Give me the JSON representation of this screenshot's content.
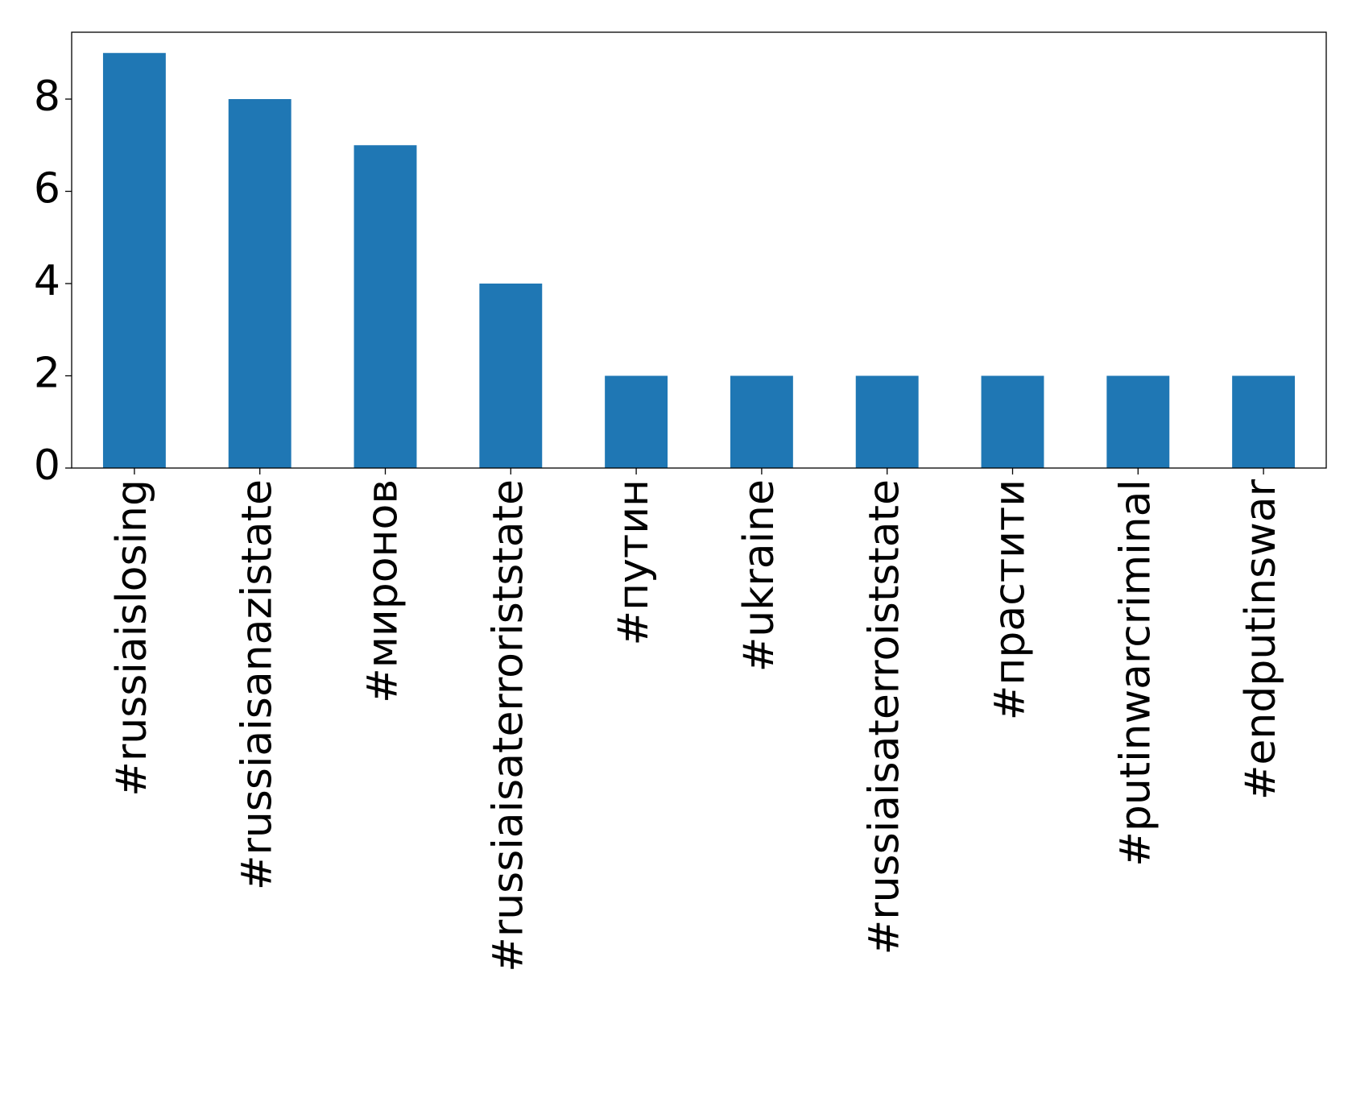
{
  "chart_data": {
    "type": "bar",
    "categories": [
      "#russiaislosing",
      "#russiaisanazistate",
      "#миронов",
      "#russiaisaterroriststate",
      "#путин",
      "#ukraine",
      "#russiaisaterroiststate",
      "#прастити",
      "#putinwarcriminal",
      "#endputinswar"
    ],
    "values": [
      9,
      8,
      7,
      4,
      2,
      2,
      2,
      2,
      2,
      2
    ],
    "color": "#1f77b4",
    "ylim": [
      0,
      9.45
    ],
    "yticks": [
      0,
      2,
      4,
      6,
      8
    ],
    "grid": false
  }
}
